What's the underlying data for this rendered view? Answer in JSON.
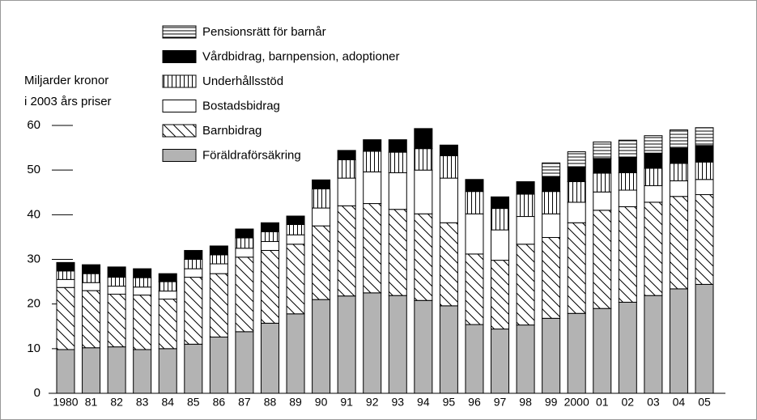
{
  "chart_data": {
    "type": "stacked_bar",
    "y_label_lines": [
      "Miljarder kronor",
      "i 2003 års priser"
    ],
    "categories": [
      "1980",
      "81",
      "82",
      "83",
      "84",
      "85",
      "86",
      "87",
      "88",
      "89",
      "90",
      "91",
      "92",
      "93",
      "94",
      "95",
      "96",
      "97",
      "98",
      "99",
      "2000",
      "01",
      "02",
      "03",
      "04",
      "05"
    ],
    "series": [
      {
        "name": "Föräldraförsäkring",
        "color": "#b3b3b3",
        "pattern": "solid",
        "values": [
          9.8,
          10.2,
          10.4,
          9.8,
          10.0,
          11.0,
          12.6,
          13.8,
          15.7,
          17.8,
          21.0,
          21.8,
          22.5,
          21.9,
          20.8,
          19.6,
          15.4,
          14.4,
          15.3,
          16.8,
          17.9,
          19.0,
          20.4,
          21.9,
          23.4,
          24.4
        ]
      },
      {
        "name": "Barnbidrag",
        "color": "#ffffff",
        "pattern": "diagonal",
        "values": [
          13.9,
          12.8,
          11.8,
          12.2,
          11.1,
          15.0,
          14.2,
          16.7,
          16.3,
          15.6,
          16.5,
          20.2,
          20.0,
          19.3,
          19.4,
          18.6,
          15.8,
          15.4,
          18.1,
          18.1,
          20.3,
          22.0,
          21.4,
          20.9,
          20.7,
          20.1
        ]
      },
      {
        "name": "Bostadsbidrag",
        "color": "#ffffff",
        "pattern": "solid",
        "values": [
          1.8,
          1.8,
          1.8,
          1.8,
          1.8,
          1.9,
          2.2,
          2.0,
          2.0,
          2.1,
          4.0,
          6.2,
          7.1,
          8.2,
          9.8,
          10.0,
          9.0,
          6.8,
          6.2,
          5.3,
          4.6,
          4.1,
          3.7,
          3.7,
          3.5,
          3.4
        ]
      },
      {
        "name": "Underhållsstöd",
        "color": "#ffffff",
        "pattern": "vertical",
        "values": [
          1.9,
          2.0,
          2.0,
          2.1,
          2.1,
          2.1,
          2.0,
          2.3,
          2.2,
          2.3,
          4.3,
          4.1,
          4.6,
          4.6,
          4.8,
          5.0,
          5.0,
          4.8,
          5.0,
          5.0,
          4.6,
          4.2,
          3.9,
          3.9,
          3.9,
          3.9
        ]
      },
      {
        "name": "Vårdbidrag, barnpension, adoptioner",
        "color": "#000000",
        "pattern": "solid",
        "values": [
          1.9,
          2.0,
          2.3,
          2.0,
          1.8,
          2.0,
          2.0,
          2.0,
          2.0,
          1.9,
          2.0,
          2.1,
          2.6,
          2.8,
          4.5,
          2.4,
          2.7,
          2.6,
          2.8,
          3.2,
          3.3,
          3.3,
          3.4,
          3.4,
          3.4,
          3.7
        ]
      },
      {
        "name": "Pensionsrätt för barnår",
        "color": "#ffffff",
        "pattern": "horizontal",
        "values": [
          0,
          0,
          0,
          0,
          0,
          0,
          0,
          0,
          0,
          0,
          0,
          0,
          0,
          0,
          0,
          0,
          0,
          0,
          0,
          3.2,
          3.4,
          3.7,
          3.9,
          3.9,
          4.1,
          4.0
        ]
      }
    ],
    "ylim": [
      0,
      60
    ],
    "yticks": [
      0,
      10,
      20,
      30,
      40,
      50,
      60
    ]
  }
}
